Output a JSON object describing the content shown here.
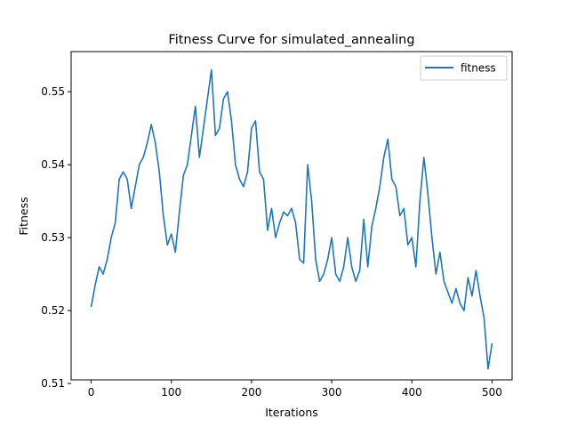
{
  "chart_data": {
    "type": "line",
    "title": "Fitness Curve for simulated_annealing",
    "xlabel": "Iterations",
    "ylabel": "Fitness",
    "xlim": [
      -25,
      525
    ],
    "ylim": [
      0.5105,
      0.5555
    ],
    "xticks": [
      0,
      100,
      200,
      300,
      400,
      500
    ],
    "yticks": [
      0.51,
      0.52,
      0.53,
      0.54,
      0.55
    ],
    "ytick_labels": [
      "0.51",
      "0.52",
      "0.53",
      "0.54",
      "0.55"
    ],
    "grid": false,
    "legend": {
      "placement": "top-right",
      "entries": [
        "fitness"
      ]
    },
    "series": [
      {
        "name": "fitness",
        "color": "#1f77b4",
        "x": [
          0,
          5,
          10,
          15,
          20,
          25,
          30,
          35,
          40,
          45,
          50,
          55,
          60,
          65,
          70,
          75,
          80,
          85,
          90,
          95,
          100,
          105,
          110,
          115,
          120,
          125,
          130,
          135,
          140,
          145,
          150,
          155,
          160,
          165,
          170,
          175,
          180,
          185,
          190,
          195,
          200,
          205,
          210,
          215,
          220,
          225,
          230,
          235,
          240,
          245,
          250,
          255,
          260,
          265,
          270,
          275,
          280,
          285,
          290,
          295,
          300,
          305,
          310,
          315,
          320,
          325,
          330,
          335,
          340,
          345,
          350,
          355,
          360,
          365,
          370,
          375,
          380,
          385,
          390,
          395,
          400,
          405,
          410,
          415,
          420,
          425,
          430,
          435,
          440,
          445,
          450,
          455,
          460,
          465,
          470,
          475,
          480,
          485,
          490,
          495,
          500
        ],
        "values": [
          0.5205,
          0.5235,
          0.526,
          0.525,
          0.527,
          0.53,
          0.532,
          0.538,
          0.539,
          0.538,
          0.534,
          0.537,
          0.54,
          0.541,
          0.543,
          0.5455,
          0.543,
          0.539,
          0.533,
          0.529,
          0.5305,
          0.528,
          0.5335,
          0.5385,
          0.54,
          0.544,
          0.548,
          0.541,
          0.545,
          0.549,
          0.553,
          0.544,
          0.545,
          0.549,
          0.55,
          0.546,
          0.54,
          0.538,
          0.537,
          0.539,
          0.545,
          0.546,
          0.539,
          0.538,
          0.531,
          0.534,
          0.53,
          0.532,
          0.5335,
          0.533,
          0.534,
          0.532,
          0.527,
          0.5265,
          0.54,
          0.535,
          0.527,
          0.524,
          0.525,
          0.527,
          0.53,
          0.525,
          0.524,
          0.526,
          0.53,
          0.526,
          0.524,
          0.5255,
          0.5325,
          0.526,
          0.5315,
          0.534,
          0.537,
          0.541,
          0.5435,
          0.538,
          0.537,
          0.533,
          0.534,
          0.529,
          0.53,
          0.526,
          0.535,
          0.541,
          0.536,
          0.53,
          0.525,
          0.528,
          0.524,
          0.5225,
          0.521,
          0.523,
          0.521,
          0.52,
          0.5245,
          0.522,
          0.5255,
          0.522,
          0.519,
          0.512,
          0.5155
        ]
      }
    ]
  }
}
